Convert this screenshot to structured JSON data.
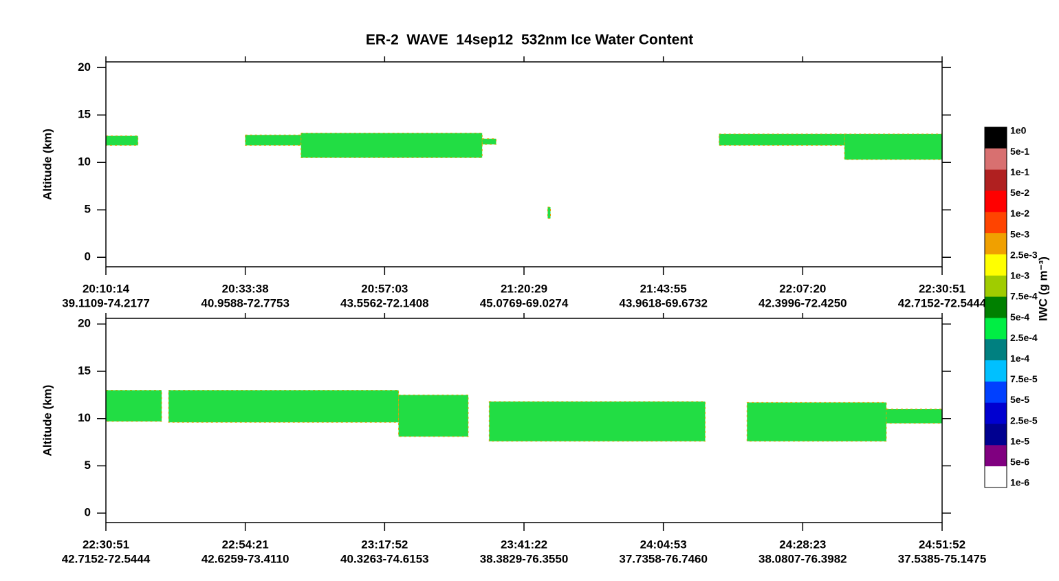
{
  "title": "ER-2  WAVE  14sep12  532nm Ice Water Content",
  "chart_data": [
    {
      "type": "curtain",
      "y_label": "Altitude (km)",
      "ylim": [
        -1,
        20.6
      ],
      "yticks": [
        0,
        5,
        10,
        15,
        20
      ],
      "xlim": [
        0,
        6
      ],
      "categories": [
        "20:10:14",
        "20:33:38",
        "20:57:03",
        "21:20:29",
        "21:43:55",
        "22:07:20",
        "22:30:51"
      ],
      "locations": [
        "39.1109-74.2177",
        "40.9588-72.7753",
        "43.5562-72.1408",
        "45.0769-69.0274",
        "43.9618-69.6732",
        "42.3996-72.4250",
        "42.7152-72.5444"
      ],
      "color": "#22dd44",
      "cloud_regions": [
        {
          "x": [
            0,
            0.23
          ],
          "altitude": [
            11.8,
            12.8
          ]
        },
        {
          "x": [
            1.0,
            1.4
          ],
          "altitude": [
            11.8,
            12.9
          ]
        },
        {
          "x": [
            1.4,
            2.7
          ],
          "altitude": [
            10.5,
            13.1
          ]
        },
        {
          "x": [
            2.7,
            2.8
          ],
          "altitude": [
            11.9,
            12.5
          ]
        },
        {
          "x": [
            3.17,
            3.19
          ],
          "altitude": [
            4.1,
            5.3
          ]
        },
        {
          "x": [
            4.4,
            5.3
          ],
          "altitude": [
            11.8,
            13.0
          ]
        },
        {
          "x": [
            5.3,
            6.0
          ],
          "altitude": [
            10.3,
            13.0
          ]
        }
      ]
    },
    {
      "type": "curtain",
      "y_label": "Altitude (km)",
      "ylim": [
        -1,
        20.6
      ],
      "yticks": [
        0,
        5,
        10,
        15,
        20
      ],
      "xlim": [
        0,
        6
      ],
      "categories": [
        "22:30:51",
        "22:54:21",
        "23:17:52",
        "23:41:22",
        "24:04:53",
        "24:28:23",
        "24:51:52"
      ],
      "locations": [
        "42.7152-72.5444",
        "42.6259-73.4110",
        "40.3263-74.6153",
        "38.3829-76.3550",
        "37.7358-76.7460",
        "38.0807-76.3982",
        "37.5385-75.1475"
      ],
      "color": "#22dd44",
      "cloud_regions": [
        {
          "x": [
            0,
            0.4
          ],
          "altitude": [
            9.7,
            13.0
          ]
        },
        {
          "x": [
            0.45,
            2.1
          ],
          "altitude": [
            9.6,
            13.0
          ]
        },
        {
          "x": [
            2.1,
            2.6
          ],
          "altitude": [
            8.1,
            12.5
          ]
        },
        {
          "x": [
            2.75,
            4.3
          ],
          "altitude": [
            7.6,
            11.8
          ]
        },
        {
          "x": [
            4.6,
            5.6
          ],
          "altitude": [
            7.6,
            11.7
          ]
        },
        {
          "x": [
            5.6,
            6.0
          ],
          "altitude": [
            9.5,
            11.0
          ]
        }
      ]
    }
  ],
  "colorbar": {
    "title": "IWC (g m⁻³)",
    "labels": [
      "1e0",
      "5e-1",
      "1e-1",
      "5e-2",
      "1e-2",
      "5e-3",
      "2.5e-3",
      "1e-3",
      "7.5e-4",
      "5e-4",
      "2.5e-4",
      "1e-4",
      "7.5e-5",
      "5e-5",
      "2.5e-5",
      "1e-5",
      "5e-6",
      "1e-6"
    ],
    "colors": [
      "#000000",
      "#d87070",
      "#b02020",
      "#ff0000",
      "#ff4400",
      "#f0a000",
      "#ffff00",
      "#a0cc00",
      "#008000",
      "#00ee44",
      "#008080",
      "#00c0ff",
      "#0040ff",
      "#0000d0",
      "#000090",
      "#800080",
      "#ffffff"
    ]
  }
}
